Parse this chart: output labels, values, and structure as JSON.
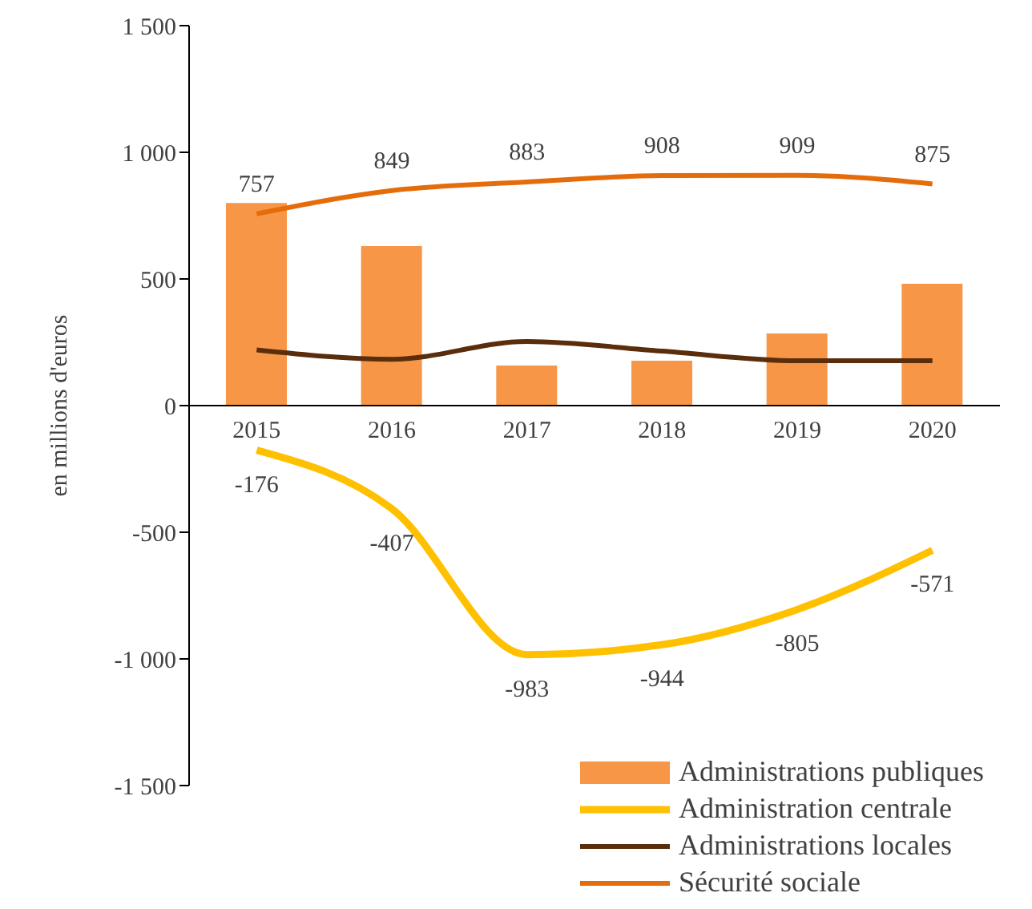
{
  "chart_data": {
    "type": "bar",
    "ylabel": "en millions d'euros",
    "categories": [
      "2015",
      "2016",
      "2017",
      "2018",
      "2019",
      "2020"
    ],
    "series": [
      {
        "name": "Administrations publiques",
        "color": "#f79646",
        "values": [
          800,
          630,
          158,
          177,
          285,
          481
        ]
      },
      {
        "name": "Administration centrale",
        "type": "line",
        "color": "#ffc000",
        "values": [
          -176,
          -407,
          -983,
          -944,
          -805,
          -571
        ],
        "value_labels": [
          "-176",
          "-407",
          "-983",
          "-944",
          "-805",
          "-571"
        ]
      },
      {
        "name": "Administrations locales",
        "type": "line",
        "color": "#5a2d0c",
        "values": [
          220,
          183,
          253,
          215,
          177,
          177
        ]
      },
      {
        "name": "Sécurité sociale",
        "type": "line",
        "color": "#e46c0a",
        "values": [
          757,
          849,
          883,
          908,
          909,
          875
        ],
        "value_labels": [
          "757",
          "849",
          "883",
          "908",
          "909",
          "875"
        ]
      }
    ],
    "ylim": [
      -1500,
      1500
    ],
    "yticks": [
      {
        "value": -1500,
        "label": "-1 500"
      },
      {
        "value": -1000,
        "label": "-1 000"
      },
      -500,
      0,
      500,
      {
        "value": 1000,
        "label": "1 000"
      },
      {
        "value": 1500,
        "label": "1 500"
      }
    ],
    "grid": false,
    "legend": "bottom right",
    "line_style": "solid",
    "marker": "none"
  }
}
